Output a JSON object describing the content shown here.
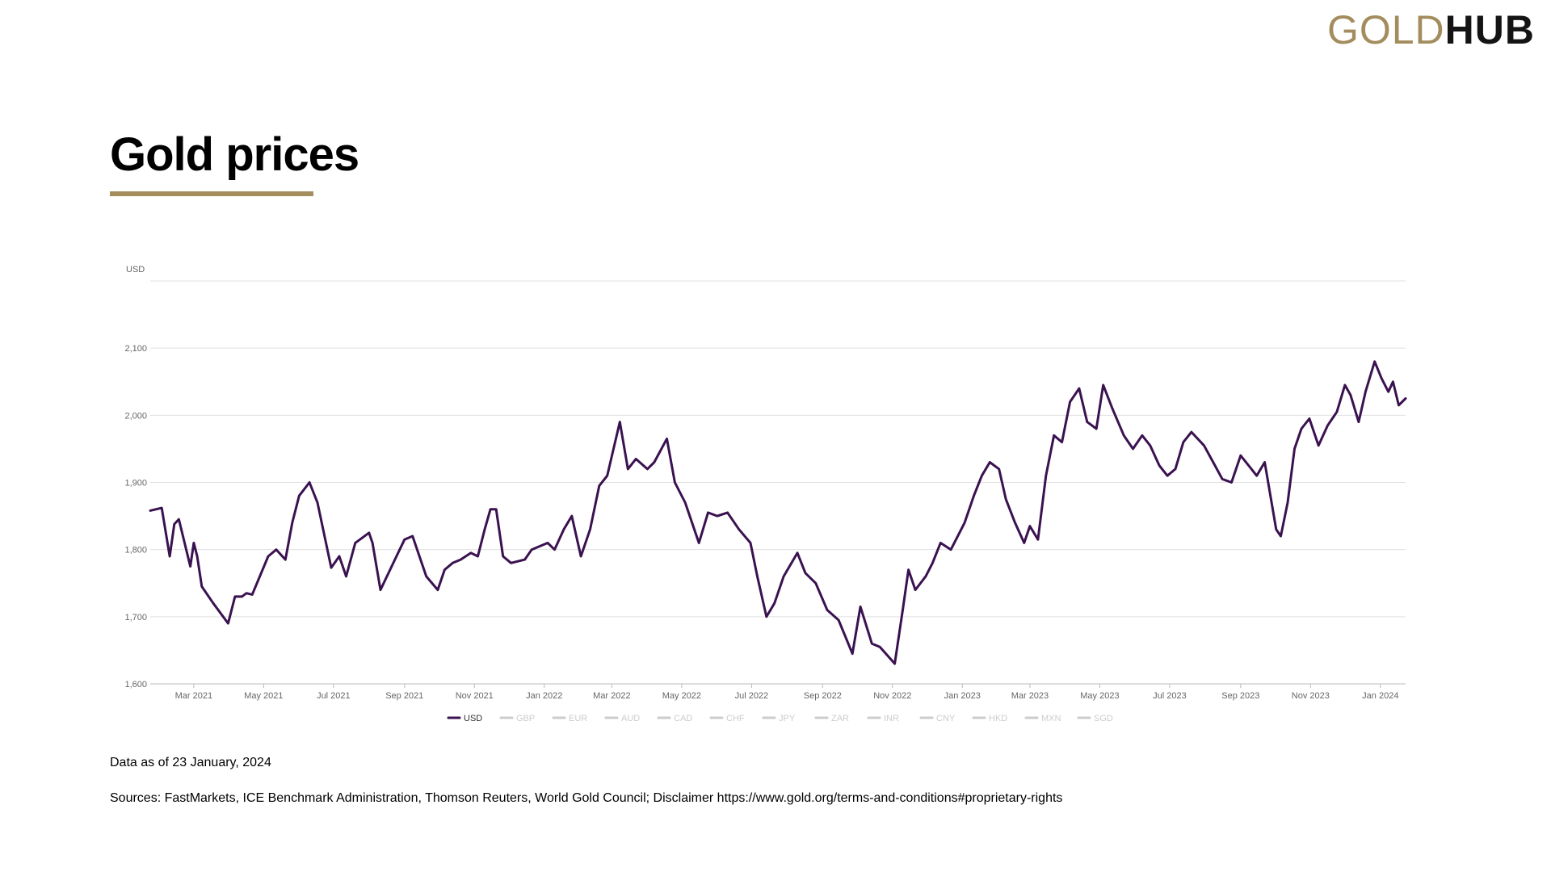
{
  "logo": {
    "part1": "GOLD",
    "part2": "HUB"
  },
  "page_title": "Gold prices",
  "footer": {
    "data_as_of": "Data as of 23 January, 2024",
    "sources": "Sources: FastMarkets, ICE Benchmark Administration, Thomson Reuters, World Gold Council; Disclaimer https://www.gold.org/terms-and-conditions#proprietary-rights"
  },
  "colors": {
    "series": "#3a1250",
    "accent": "#a38d5d",
    "grid": "#e0e0e0",
    "inactive": "#cccccc",
    "active_legend": "#333333"
  },
  "chart_data": {
    "type": "line",
    "title": "Gold prices",
    "ylabel": "USD",
    "xlabel": "",
    "ylim": [
      1600,
      2200
    ],
    "xlim": [
      "2021-01-22",
      "2024-01-23"
    ],
    "grid": "horizontal",
    "legend_position": "bottom",
    "y_ticks": [
      1600,
      1700,
      1800,
      1900,
      2000,
      2100
    ],
    "y_tick_labels": [
      "1,600",
      "1,700",
      "1,800",
      "1,900",
      "2,000",
      "2,100"
    ],
    "x_ticks": [
      "2021-03-01",
      "2021-05-01",
      "2021-07-01",
      "2021-09-01",
      "2021-11-01",
      "2022-01-01",
      "2022-03-01",
      "2022-05-01",
      "2022-07-01",
      "2022-09-01",
      "2022-11-01",
      "2023-01-01",
      "2023-03-01",
      "2023-05-01",
      "2023-07-01",
      "2023-09-01",
      "2023-11-01",
      "2024-01-01"
    ],
    "x_tick_labels": [
      "Mar 2021",
      "May 2021",
      "Jul 2021",
      "Sep 2021",
      "Nov 2021",
      "Jan 2022",
      "Mar 2022",
      "May 2022",
      "Jul 2022",
      "Sep 2022",
      "Nov 2022",
      "Jan 2023",
      "Mar 2023",
      "May 2023",
      "Jul 2023",
      "Sep 2023",
      "Nov 2023",
      "Jan 2024"
    ],
    "legend": [
      "USD",
      "GBP",
      "EUR",
      "AUD",
      "CAD",
      "CHF",
      "JPY",
      "ZAR",
      "INR",
      "CNY",
      "HKD",
      "MXN",
      "SGD"
    ],
    "active_series": "USD",
    "series": [
      {
        "name": "USD",
        "points": [
          [
            "2021-01-22",
            1858
          ],
          [
            "2021-02-01",
            1862
          ],
          [
            "2021-02-08",
            1790
          ],
          [
            "2021-02-12",
            1838
          ],
          [
            "2021-02-16",
            1845
          ],
          [
            "2021-02-26",
            1775
          ],
          [
            "2021-03-01",
            1810
          ],
          [
            "2021-03-04",
            1790
          ],
          [
            "2021-03-08",
            1745
          ],
          [
            "2021-03-18",
            1720
          ],
          [
            "2021-03-31",
            1690
          ],
          [
            "2021-04-06",
            1730
          ],
          [
            "2021-04-12",
            1730
          ],
          [
            "2021-04-16",
            1735
          ],
          [
            "2021-04-21",
            1733
          ],
          [
            "2021-05-05",
            1790
          ],
          [
            "2021-05-12",
            1800
          ],
          [
            "2021-05-20",
            1785
          ],
          [
            "2021-05-26",
            1840
          ],
          [
            "2021-06-01",
            1880
          ],
          [
            "2021-06-10",
            1900
          ],
          [
            "2021-06-17",
            1870
          ],
          [
            "2021-06-29",
            1773
          ],
          [
            "2021-07-06",
            1790
          ],
          [
            "2021-07-12",
            1760
          ],
          [
            "2021-07-20",
            1810
          ],
          [
            "2021-08-01",
            1825
          ],
          [
            "2021-08-04",
            1810
          ],
          [
            "2021-08-11",
            1740
          ],
          [
            "2021-08-25",
            1790
          ],
          [
            "2021-09-01",
            1815
          ],
          [
            "2021-09-08",
            1820
          ],
          [
            "2021-09-20",
            1760
          ],
          [
            "2021-09-30",
            1740
          ],
          [
            "2021-10-06",
            1770
          ],
          [
            "2021-10-13",
            1780
          ],
          [
            "2021-10-20",
            1785
          ],
          [
            "2021-10-29",
            1795
          ],
          [
            "2021-11-04",
            1790
          ],
          [
            "2021-11-10",
            1830
          ],
          [
            "2021-11-15",
            1860
          ],
          [
            "2021-11-20",
            1860
          ],
          [
            "2021-11-26",
            1790
          ],
          [
            "2021-12-03",
            1780
          ],
          [
            "2021-12-15",
            1785
          ],
          [
            "2021-12-21",
            1800
          ],
          [
            "2022-01-04",
            1810
          ],
          [
            "2022-01-10",
            1800
          ],
          [
            "2022-01-18",
            1830
          ],
          [
            "2022-01-25",
            1850
          ],
          [
            "2022-02-02",
            1790
          ],
          [
            "2022-02-10",
            1830
          ],
          [
            "2022-02-18",
            1895
          ],
          [
            "2022-02-25",
            1910
          ],
          [
            "2022-03-08",
            1990
          ],
          [
            "2022-03-15",
            1920
          ],
          [
            "2022-03-22",
            1935
          ],
          [
            "2022-04-01",
            1920
          ],
          [
            "2022-04-07",
            1930
          ],
          [
            "2022-04-18",
            1965
          ],
          [
            "2022-04-25",
            1900
          ],
          [
            "2022-05-04",
            1870
          ],
          [
            "2022-05-16",
            1810
          ],
          [
            "2022-05-24",
            1855
          ],
          [
            "2022-06-01",
            1850
          ],
          [
            "2022-06-10",
            1855
          ],
          [
            "2022-06-20",
            1830
          ],
          [
            "2022-06-30",
            1810
          ],
          [
            "2022-07-06",
            1760
          ],
          [
            "2022-07-14",
            1700
          ],
          [
            "2022-07-21",
            1720
          ],
          [
            "2022-07-29",
            1760
          ],
          [
            "2022-08-10",
            1795
          ],
          [
            "2022-08-17",
            1765
          ],
          [
            "2022-08-26",
            1750
          ],
          [
            "2022-09-05",
            1710
          ],
          [
            "2022-09-15",
            1695
          ],
          [
            "2022-09-27",
            1645
          ],
          [
            "2022-10-04",
            1715
          ],
          [
            "2022-10-14",
            1660
          ],
          [
            "2022-10-21",
            1655
          ],
          [
            "2022-11-03",
            1630
          ],
          [
            "2022-11-10",
            1710
          ],
          [
            "2022-11-15",
            1770
          ],
          [
            "2022-11-21",
            1740
          ],
          [
            "2022-11-30",
            1760
          ],
          [
            "2022-12-06",
            1780
          ],
          [
            "2022-12-13",
            1810
          ],
          [
            "2022-12-22",
            1800
          ],
          [
            "2023-01-03",
            1840
          ],
          [
            "2023-01-11",
            1880
          ],
          [
            "2023-01-18",
            1910
          ],
          [
            "2023-01-25",
            1930
          ],
          [
            "2023-02-02",
            1920
          ],
          [
            "2023-02-08",
            1875
          ],
          [
            "2023-02-16",
            1840
          ],
          [
            "2023-02-24",
            1810
          ],
          [
            "2023-03-01",
            1835
          ],
          [
            "2023-03-08",
            1815
          ],
          [
            "2023-03-15",
            1910
          ],
          [
            "2023-03-22",
            1970
          ],
          [
            "2023-03-29",
            1960
          ],
          [
            "2023-04-05",
            2020
          ],
          [
            "2023-04-13",
            2040
          ],
          [
            "2023-04-20",
            1990
          ],
          [
            "2023-04-28",
            1980
          ],
          [
            "2023-05-04",
            2045
          ],
          [
            "2023-05-12",
            2010
          ],
          [
            "2023-05-22",
            1970
          ],
          [
            "2023-05-30",
            1950
          ],
          [
            "2023-06-07",
            1970
          ],
          [
            "2023-06-14",
            1955
          ],
          [
            "2023-06-22",
            1925
          ],
          [
            "2023-06-29",
            1910
          ],
          [
            "2023-07-06",
            1920
          ],
          [
            "2023-07-13",
            1960
          ],
          [
            "2023-07-20",
            1975
          ],
          [
            "2023-07-31",
            1955
          ],
          [
            "2023-08-08",
            1930
          ],
          [
            "2023-08-16",
            1905
          ],
          [
            "2023-08-24",
            1900
          ],
          [
            "2023-09-01",
            1940
          ],
          [
            "2023-09-08",
            1925
          ],
          [
            "2023-09-15",
            1910
          ],
          [
            "2023-09-22",
            1930
          ],
          [
            "2023-10-02",
            1830
          ],
          [
            "2023-10-06",
            1820
          ],
          [
            "2023-10-12",
            1870
          ],
          [
            "2023-10-18",
            1950
          ],
          [
            "2023-10-24",
            1980
          ],
          [
            "2023-10-31",
            1995
          ],
          [
            "2023-11-08",
            1955
          ],
          [
            "2023-11-16",
            1985
          ],
          [
            "2023-11-24",
            2005
          ],
          [
            "2023-12-01",
            2045
          ],
          [
            "2023-12-06",
            2030
          ],
          [
            "2023-12-13",
            1990
          ],
          [
            "2023-12-19",
            2035
          ],
          [
            "2023-12-27",
            2080
          ],
          [
            "2024-01-02",
            2055
          ],
          [
            "2024-01-08",
            2035
          ],
          [
            "2024-01-12",
            2050
          ],
          [
            "2024-01-17",
            2015
          ],
          [
            "2024-01-23",
            2025
          ]
        ]
      }
    ]
  }
}
